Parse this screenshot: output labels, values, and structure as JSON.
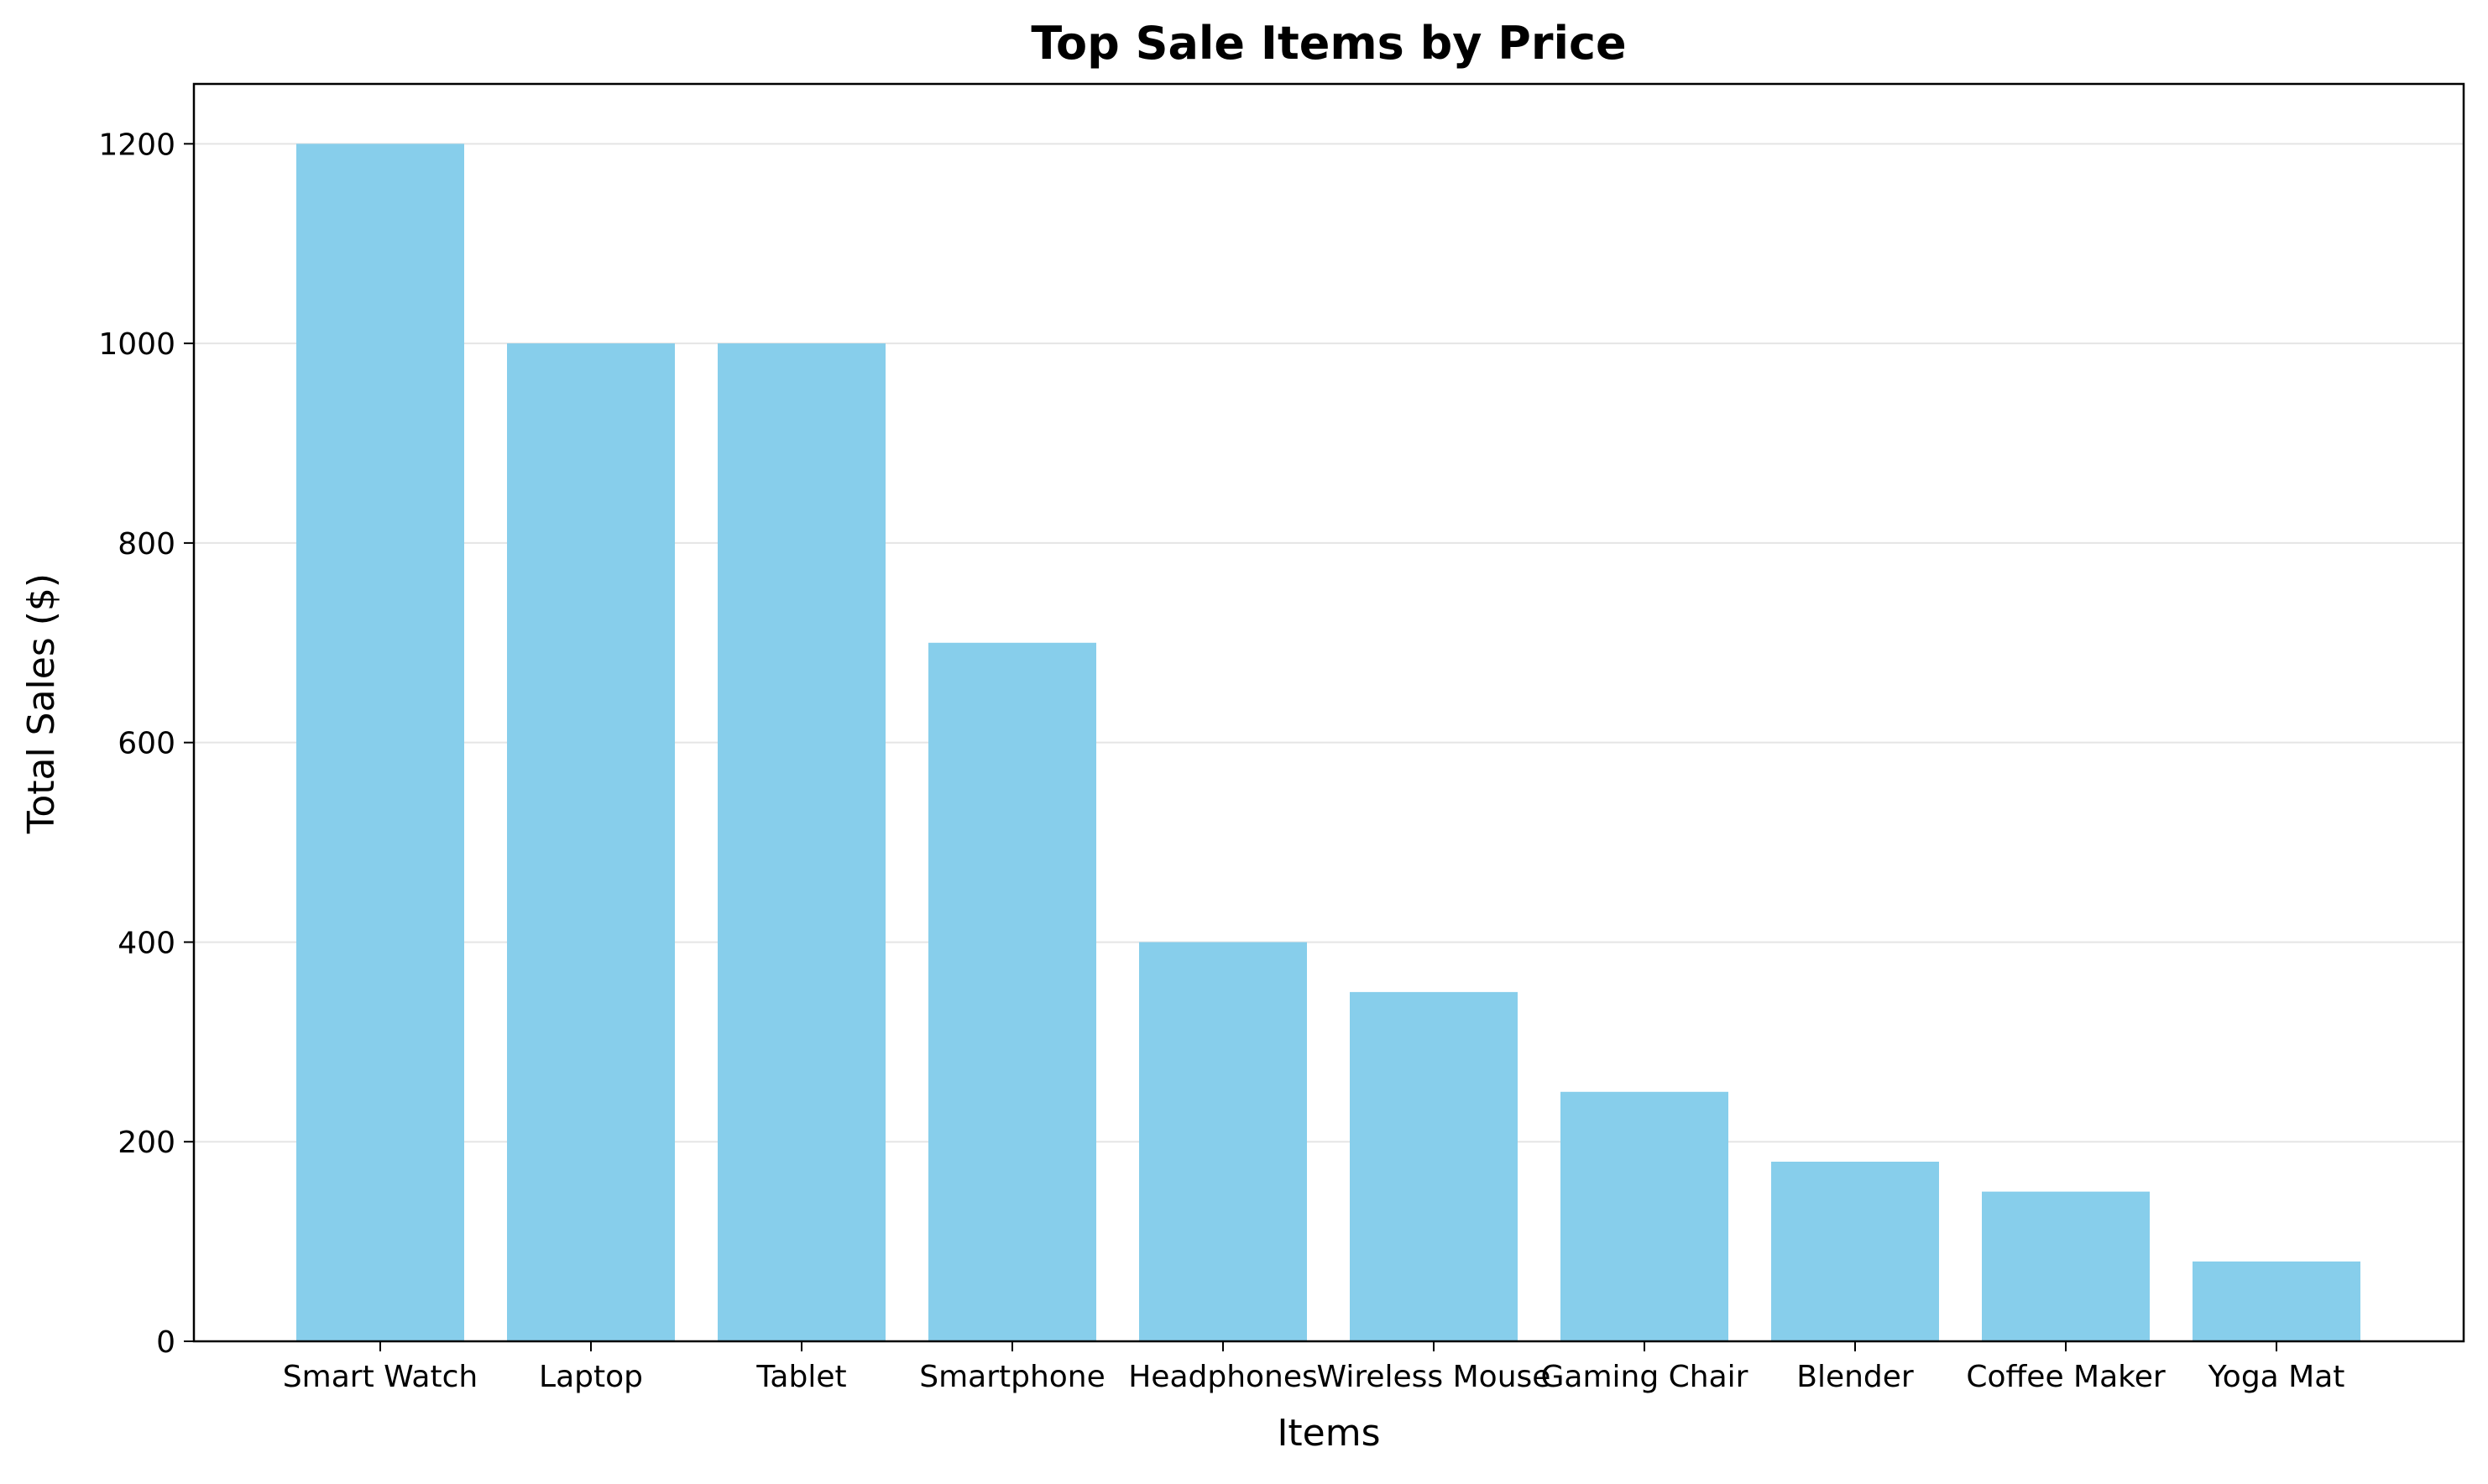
{
  "chart_data": {
    "type": "bar",
    "title": "Top Sale Items by Price",
    "xlabel": "Items",
    "ylabel": "Total Sales ($)",
    "categories": [
      "Smart Watch",
      "Laptop",
      "Tablet",
      "Smartphone",
      "Headphones",
      "Wireless Mouse",
      "Gaming Chair",
      "Blender",
      "Coffee Maker",
      "Yoga Mat"
    ],
    "values": [
      1200,
      1000,
      1000,
      700,
      400,
      350,
      250,
      180,
      150,
      80
    ],
    "ylim": [
      0,
      1260
    ],
    "yticks": [
      0,
      200,
      400,
      600,
      800,
      1000,
      1200
    ],
    "grid": "horizontal",
    "bar_color": "#87CEEB",
    "grid_color": "#e5e5e5"
  }
}
